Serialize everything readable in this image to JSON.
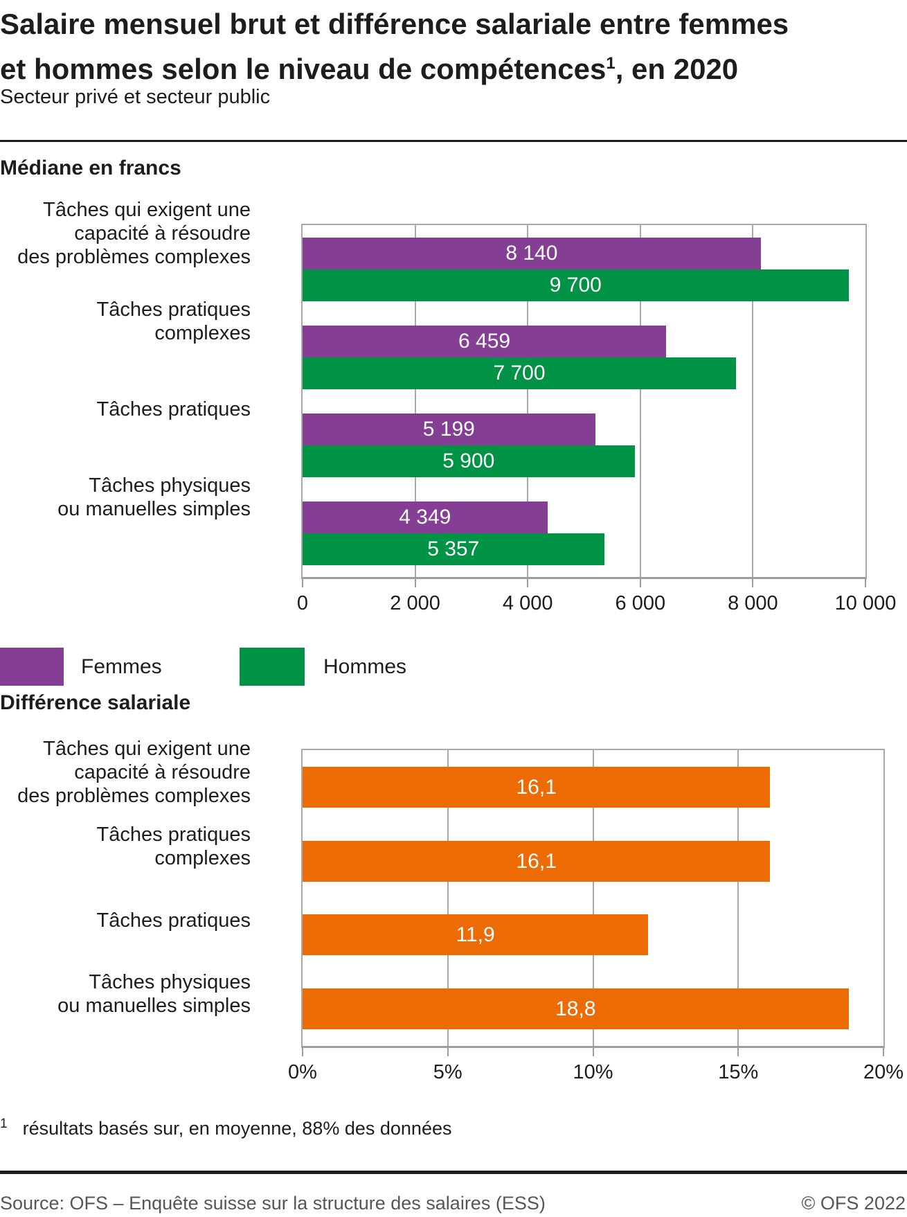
{
  "header": {
    "title_line1": "Salaire mensuel brut et différence salariale entre femmes",
    "title_line2": "et hommes selon le niveau de compétences",
    "title_sup": "1",
    "title_suffix": ", en 2020",
    "subtitle": "Secteur privé et secteur public"
  },
  "colors": {
    "femmes": "#843e94",
    "hommes": "#009245",
    "difference": "#ec6b05",
    "grid": "#a8a8a8",
    "axis": "#9c9c9c",
    "rule": "#1d1d1b",
    "footer_text": "#54565a"
  },
  "chart_data": [
    {
      "type": "bar",
      "orientation": "horizontal",
      "title": "Médiane en francs",
      "categories": [
        "Tâches qui exigent une capacité à résoudre des problèmes complexes",
        "Tâches pratiques complexes",
        "Tâches pratiques",
        "Tâches physiques ou manuelles simples"
      ],
      "category_lines": [
        [
          "Tâches qui exigent une",
          "capacité à résoudre",
          "des problèmes complexes"
        ],
        [
          "Tâches pratiques",
          "complexes"
        ],
        [
          "Tâches pratiques"
        ],
        [
          "Tâches physiques",
          "ou manuelles simples"
        ]
      ],
      "series": [
        {
          "key": "femmes",
          "name": "Femmes",
          "color": "#843e94",
          "values": [
            8140,
            6459,
            5199,
            4349
          ],
          "labels": [
            "8 140",
            "6 459",
            "5 199",
            "4 349"
          ]
        },
        {
          "key": "hommes",
          "name": "Hommes",
          "color": "#009245",
          "values": [
            9700,
            7700,
            5900,
            5357
          ],
          "labels": [
            "9 700",
            "7 700",
            "5 900",
            "5 357"
          ]
        }
      ],
      "xlim": [
        0,
        10000
      ],
      "xticks": [
        0,
        2000,
        4000,
        6000,
        8000,
        10000
      ],
      "xtick_labels": [
        "0",
        "2 000",
        "4 000",
        "6 000",
        "8 000",
        "10 000"
      ],
      "grid": true,
      "legend_position": "below"
    },
    {
      "type": "bar",
      "orientation": "horizontal",
      "title": "Différence salariale",
      "categories": [
        "Tâches qui exigent une capacité à résoudre des problèmes complexes",
        "Tâches pratiques complexes",
        "Tâches pratiques",
        "Tâches physiques ou manuelles simples"
      ],
      "category_lines": [
        [
          "Tâches qui exigent une",
          "capacité à résoudre",
          "des problèmes complexes"
        ],
        [
          "Tâches pratiques",
          "complexes"
        ],
        [
          "Tâches pratiques"
        ],
        [
          "Tâches physiques",
          "ou manuelles simples"
        ]
      ],
      "series": [
        {
          "key": "difference",
          "color": "#ec6b05",
          "values": [
            16.1,
            16.1,
            11.9,
            18.8
          ],
          "labels": [
            "16,1",
            "16,1",
            "11,9",
            "18,8"
          ]
        }
      ],
      "xlim": [
        0,
        20
      ],
      "xticks": [
        0,
        5,
        10,
        15,
        20
      ],
      "xtick_labels": [
        "0%",
        "5%",
        "10%",
        "15%",
        "20%"
      ],
      "grid": true
    }
  ],
  "footnote": {
    "marker": "1",
    "text": "résultats basés sur, en moyenne, 88% des données"
  },
  "footer": {
    "source": "Source: OFS – Enquête suisse sur la structure des salaires (ESS)",
    "copyright": "© OFS 2022"
  }
}
